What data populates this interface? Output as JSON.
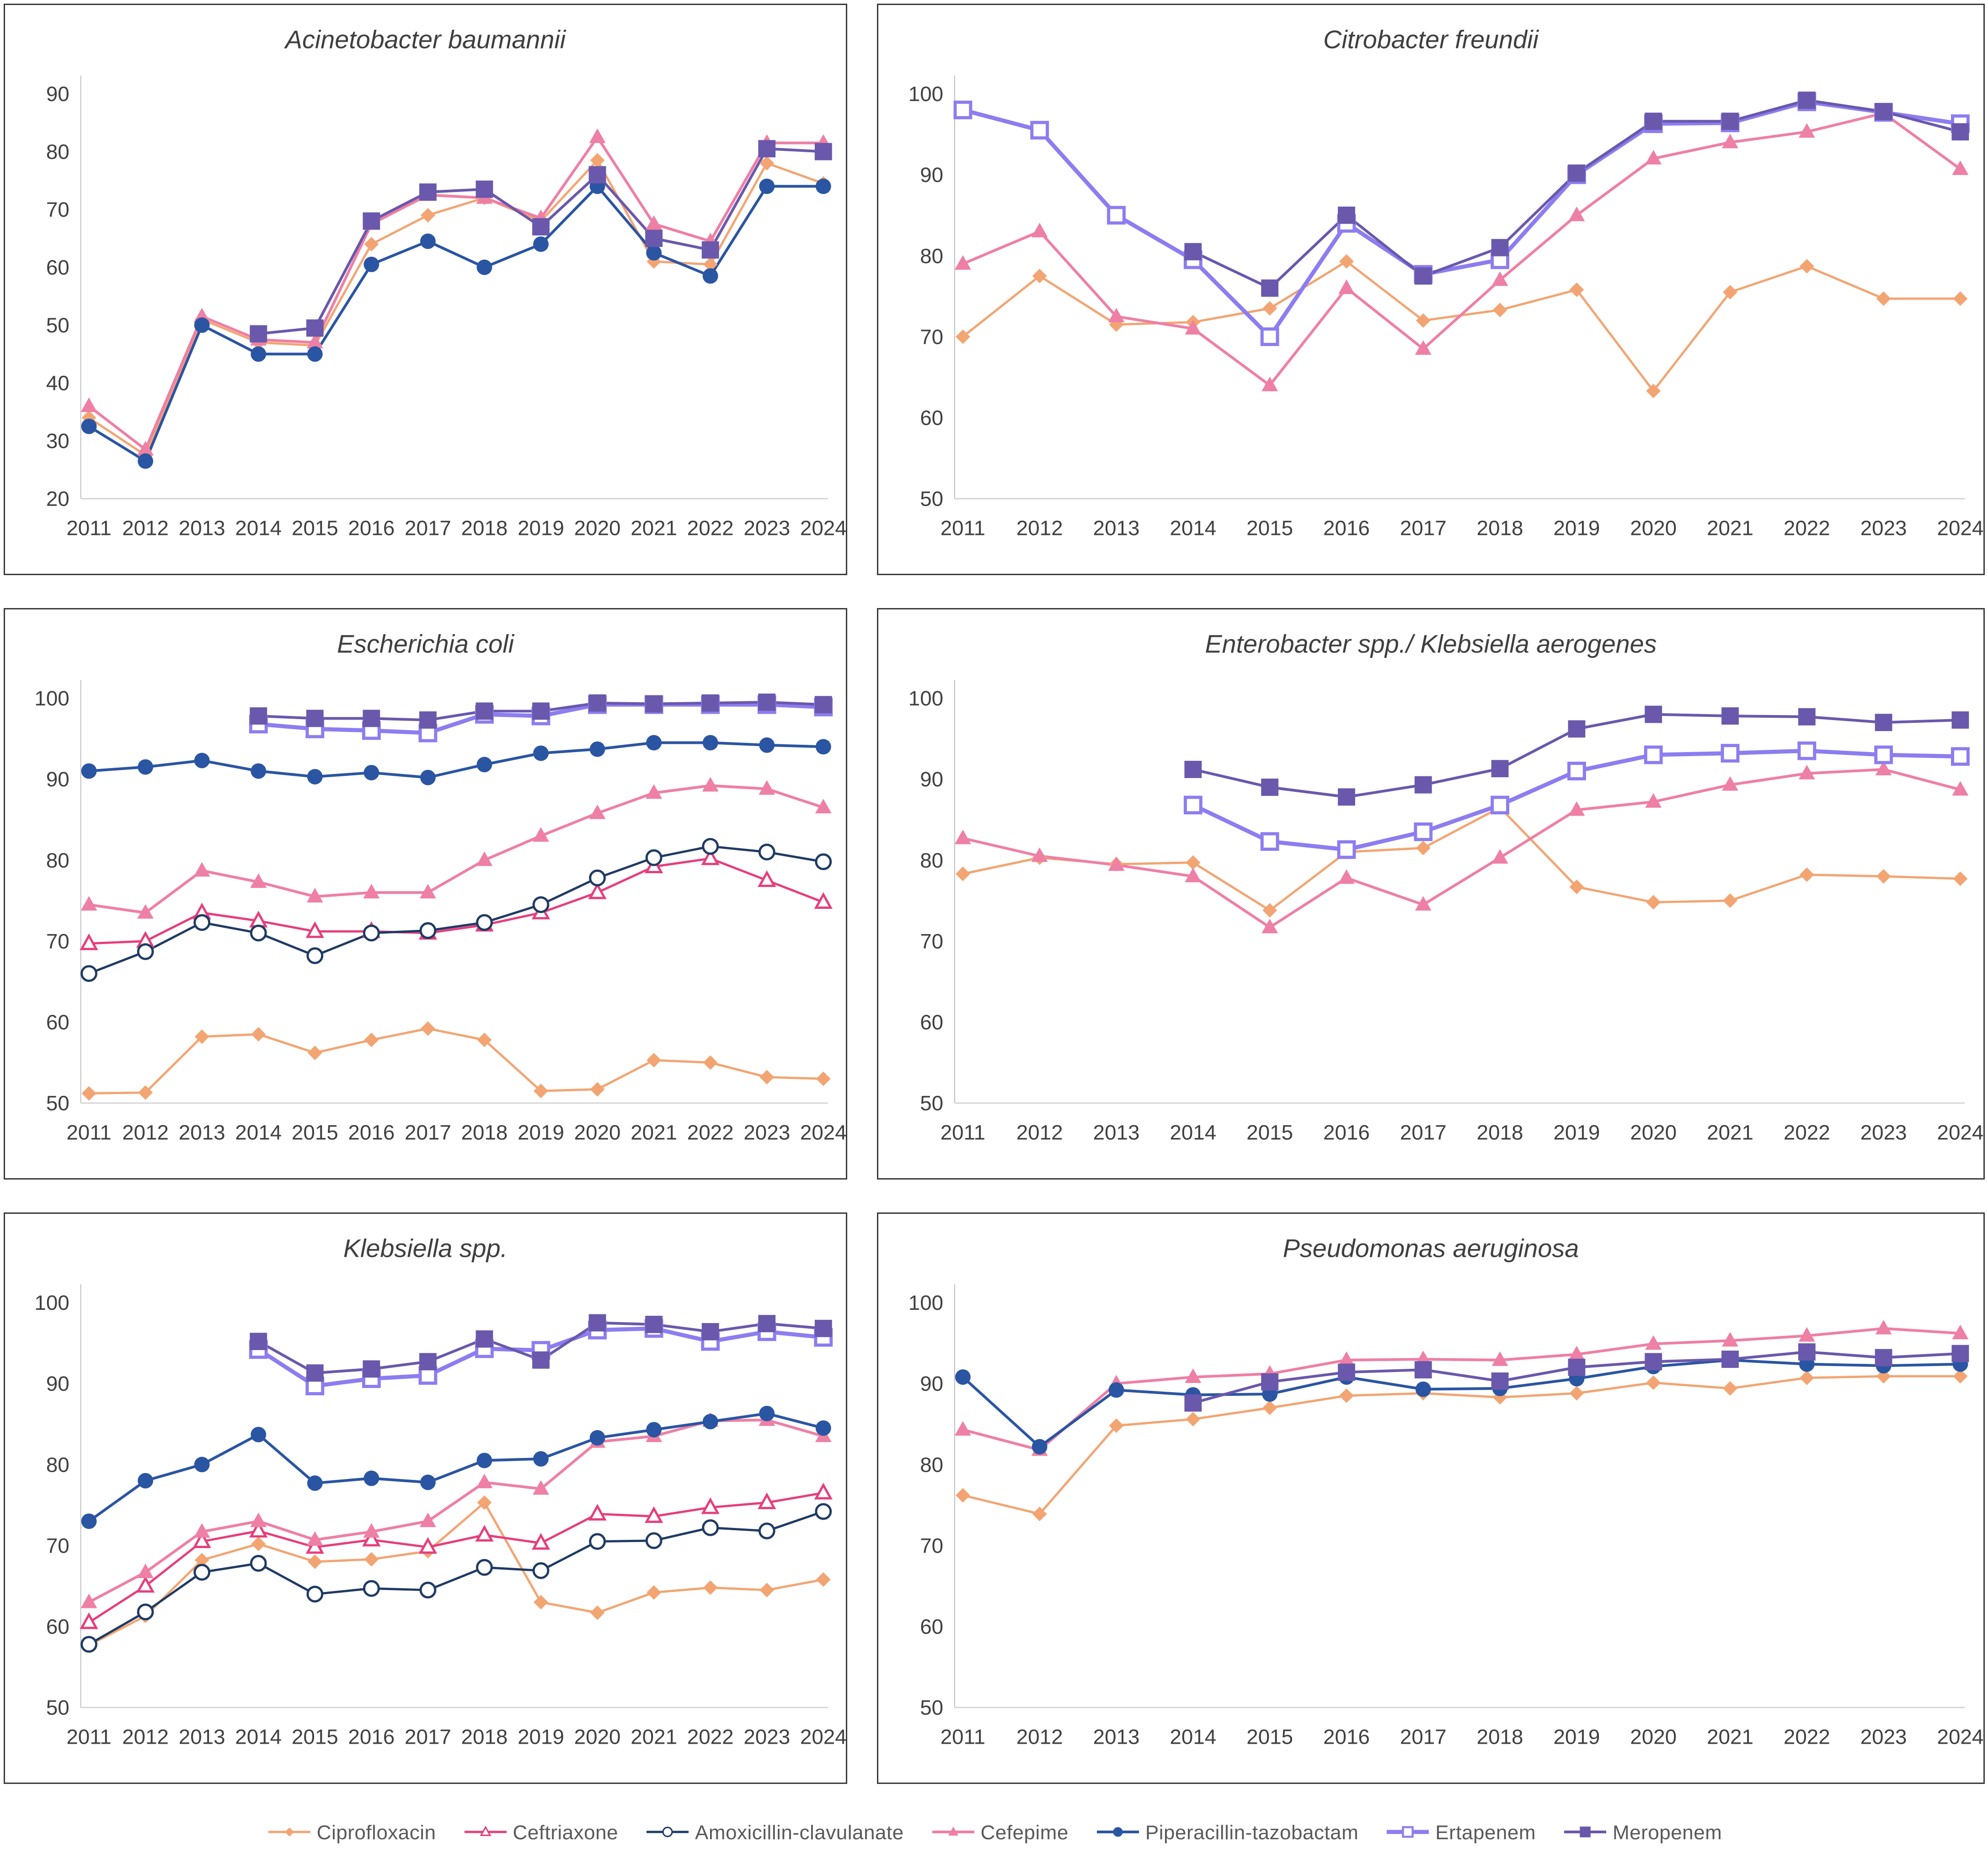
{
  "page": {
    "background": "#ffffff",
    "text_color": "#404040"
  },
  "series_styles": {
    "ciprofloxacin": {
      "label": "Ciprofloxacin",
      "color": "#F2A572",
      "marker": "diamond",
      "lw": 5
    },
    "ceftriaxone": {
      "label": "Ceftriaxone",
      "color": "#E63E7C",
      "marker": "triangle-open",
      "lw": 5
    },
    "amoxicillin_clavulanate": {
      "label": "Amoxicillin-clavulanate",
      "color": "#1F3B63",
      "marker": "circle-open",
      "lw": 5
    },
    "cefepime": {
      "label": "Cefepime",
      "color": "#EE7FA5",
      "marker": "triangle",
      "lw": 6
    },
    "piperacillin_tazobactam": {
      "label": "Piperacillin-tazobactam",
      "color": "#2A55A2",
      "marker": "circle",
      "lw": 6
    },
    "ertapenem": {
      "label": "Ertapenem",
      "color": "#8C7DF0",
      "marker": "square-open",
      "lw": 9
    },
    "meropenem": {
      "label": "Meropenem",
      "color": "#6A58AC",
      "marker": "square",
      "lw": 6
    }
  },
  "legend": {
    "order": [
      "ciprofloxacin",
      "ceftriaxone",
      "amoxicillin_clavulanate",
      "cefepime",
      "piperacillin_tazobactam",
      "ertapenem",
      "meropenem"
    ]
  },
  "chart_data": [
    {
      "type": "line",
      "title": "Acinetobacter baumannii",
      "xlabel": "",
      "ylabel": "",
      "grid": false,
      "ylim": [
        20,
        90
      ],
      "yticks": [
        20,
        30,
        40,
        50,
        60,
        70,
        80,
        90
      ],
      "x": [
        "2011",
        "2012",
        "2013",
        "2014",
        "2015",
        "2016",
        "2017",
        "2018",
        "2019",
        "2020",
        "2021",
        "2022",
        "2023",
        "2024"
      ],
      "series": [
        {
          "key": "ciprofloxacin",
          "values": [
            34,
            27.5,
            51,
            47,
            46.5,
            64,
            69,
            72,
            68,
            78.5,
            61,
            60.5,
            78,
            74.5
          ]
        },
        {
          "key": "cefepime",
          "values": [
            36,
            28.5,
            51.5,
            47.5,
            47,
            67.5,
            72.5,
            72,
            68.5,
            82.5,
            67.5,
            64.5,
            81.5,
            81.5
          ]
        },
        {
          "key": "piperacillin_tazobactam",
          "values": [
            32.5,
            26.5,
            50,
            45,
            45,
            60.5,
            64.5,
            60,
            64,
            74,
            62.5,
            58.5,
            74,
            74
          ]
        },
        {
          "key": "meropenem",
          "values": [
            null,
            null,
            null,
            48.5,
            49.5,
            68,
            73,
            73.5,
            67,
            76,
            65,
            63,
            80.5,
            80
          ]
        }
      ]
    },
    {
      "type": "line",
      "title": "Citrobacter freundii",
      "xlabel": "",
      "ylabel": "",
      "grid": false,
      "ylim": [
        50,
        100
      ],
      "yticks": [
        50,
        60,
        70,
        80,
        90,
        100
      ],
      "x": [
        "2011",
        "2012",
        "2013",
        "2014",
        "2015",
        "2016",
        "2017",
        "2018",
        "2019",
        "2020",
        "2021",
        "2022",
        "2023",
        "2024"
      ],
      "series": [
        {
          "key": "ciprofloxacin",
          "values": [
            70,
            77.5,
            71.5,
            71.8,
            73.5,
            79.3,
            72,
            73.3,
            75.8,
            63.3,
            75.5,
            78.7,
            74.7,
            74.7
          ]
        },
        {
          "key": "cefepime",
          "values": [
            79,
            83,
            72.5,
            71,
            64,
            76,
            68.5,
            77,
            85,
            92,
            94,
            95.3,
            97.6,
            90.7
          ]
        },
        {
          "key": "ertapenem",
          "values": [
            98,
            95.5,
            85,
            79.5,
            70,
            84,
            77.7,
            79.5,
            90,
            96.3,
            96.4,
            99,
            97.7,
            96.3
          ]
        },
        {
          "key": "meropenem",
          "values": [
            null,
            null,
            null,
            80.5,
            76,
            85,
            77.5,
            81,
            90.2,
            96.6,
            96.6,
            99.2,
            97.8,
            95.3
          ]
        }
      ]
    },
    {
      "type": "line",
      "title": "Escherichia coli",
      "xlabel": "",
      "ylabel": "",
      "grid": false,
      "ylim": [
        50,
        100
      ],
      "yticks": [
        50,
        60,
        70,
        80,
        90,
        100
      ],
      "x": [
        "2011",
        "2012",
        "2013",
        "2014",
        "2015",
        "2016",
        "2017",
        "2018",
        "2019",
        "2020",
        "2021",
        "2022",
        "2023",
        "2024"
      ],
      "series": [
        {
          "key": "ciprofloxacin",
          "values": [
            51.2,
            51.3,
            58.2,
            58.5,
            56.2,
            57.8,
            59.2,
            57.8,
            51.5,
            51.7,
            55.3,
            55,
            53.2,
            53
          ]
        },
        {
          "key": "ceftriaxone",
          "values": [
            69.7,
            70,
            73.5,
            72.5,
            71.2,
            71.2,
            71,
            72,
            73.5,
            76,
            79.2,
            80.2,
            77.5,
            74.8
          ]
        },
        {
          "key": "amoxicillin_clavulanate",
          "values": [
            66,
            68.7,
            72.3,
            71,
            68.2,
            71,
            71.3,
            72.3,
            74.5,
            77.8,
            80.3,
            81.7,
            81,
            79.8
          ]
        },
        {
          "key": "cefepime",
          "values": [
            74.5,
            73.5,
            78.7,
            77.3,
            75.5,
            76,
            76,
            80,
            83,
            85.8,
            88.3,
            89.2,
            88.8,
            86.5
          ]
        },
        {
          "key": "piperacillin_tazobactam",
          "values": [
            91,
            91.5,
            92.3,
            91,
            90.3,
            90.8,
            90.2,
            91.8,
            93.2,
            93.7,
            94.5,
            94.5,
            94.2,
            94
          ]
        },
        {
          "key": "ertapenem",
          "values": [
            null,
            null,
            null,
            96.8,
            96.2,
            96,
            95.7,
            98,
            97.8,
            99.2,
            99.2,
            99.2,
            99.2,
            98.9
          ]
        },
        {
          "key": "meropenem",
          "values": [
            null,
            null,
            null,
            97.8,
            97.5,
            97.5,
            97.3,
            98.4,
            98.4,
            99.4,
            99.3,
            99.4,
            99.5,
            99.2
          ]
        }
      ]
    },
    {
      "type": "line",
      "title": "Enterobacter spp./ Klebsiella aerogenes",
      "xlabel": "",
      "ylabel": "",
      "grid": false,
      "ylim": [
        50,
        100
      ],
      "yticks": [
        50,
        60,
        70,
        80,
        90,
        100
      ],
      "x": [
        "2011",
        "2012",
        "2013",
        "2014",
        "2015",
        "2016",
        "2017",
        "2018",
        "2019",
        "2020",
        "2021",
        "2022",
        "2023",
        "2024"
      ],
      "series": [
        {
          "key": "ciprofloxacin",
          "values": [
            78.3,
            80.3,
            79.5,
            79.7,
            73.8,
            81,
            81.5,
            86.5,
            76.7,
            74.8,
            75,
            78.2,
            78,
            77.7
          ]
        },
        {
          "key": "cefepime",
          "values": [
            82.7,
            80.5,
            79.4,
            78,
            71.7,
            77.8,
            74.5,
            80.3,
            86.2,
            87.2,
            89.3,
            90.7,
            91.2,
            88.7
          ]
        },
        {
          "key": "ertapenem",
          "values": [
            null,
            null,
            null,
            86.8,
            82.3,
            81.3,
            83.5,
            86.8,
            91,
            93,
            93.2,
            93.5,
            93,
            92.8
          ]
        },
        {
          "key": "meropenem",
          "values": [
            null,
            null,
            null,
            91.2,
            89,
            87.8,
            89.3,
            91.3,
            96.2,
            98,
            97.8,
            97.7,
            97,
            97.3
          ]
        }
      ]
    },
    {
      "type": "line",
      "title": "Klebsiella spp.",
      "xlabel": "",
      "ylabel": "",
      "grid": false,
      "ylim": [
        50,
        100
      ],
      "yticks": [
        50,
        60,
        70,
        80,
        90,
        100
      ],
      "x": [
        "2011",
        "2012",
        "2013",
        "2014",
        "2015",
        "2016",
        "2017",
        "2018",
        "2019",
        "2020",
        "2021",
        "2022",
        "2023",
        "2024"
      ],
      "series": [
        {
          "key": "ciprofloxacin",
          "values": [
            57.7,
            61.3,
            68.2,
            70.2,
            68,
            68.3,
            69.3,
            75.3,
            63,
            61.7,
            64.2,
            64.8,
            64.5,
            65.8
          ]
        },
        {
          "key": "ceftriaxone",
          "values": [
            60.5,
            65,
            70.5,
            71.8,
            69.8,
            70.7,
            69.8,
            71.3,
            70.3,
            73.9,
            73.6,
            74.7,
            75.3,
            76.5
          ]
        },
        {
          "key": "amoxicillin_clavulanate",
          "values": [
            57.8,
            61.8,
            66.7,
            67.8,
            64,
            64.7,
            64.5,
            67.3,
            66.9,
            70.5,
            70.6,
            72.2,
            71.8,
            74.2
          ]
        },
        {
          "key": "cefepime",
          "values": [
            63,
            66.7,
            71.7,
            73,
            70.7,
            71.7,
            73,
            77.8,
            77,
            82.8,
            83.5,
            85.4,
            85.5,
            83.5
          ]
        },
        {
          "key": "piperacillin_tazobactam",
          "values": [
            73,
            78,
            80,
            83.7,
            77.7,
            78.3,
            77.8,
            80.5,
            80.7,
            83.3,
            84.3,
            85.3,
            86.3,
            84.5
          ]
        },
        {
          "key": "ertapenem",
          "values": [
            null,
            null,
            null,
            94.2,
            89.7,
            90.6,
            91,
            94.3,
            94.1,
            96.6,
            96.8,
            95.2,
            96.4,
            95.7
          ]
        },
        {
          "key": "meropenem",
          "values": [
            null,
            null,
            null,
            95.2,
            91.3,
            91.8,
            92.7,
            95.5,
            92.9,
            97.5,
            97.3,
            96.4,
            97.4,
            96.8
          ]
        }
      ]
    },
    {
      "type": "line",
      "title": "Pseudomonas aeruginosa",
      "xlabel": "",
      "ylabel": "",
      "grid": false,
      "ylim": [
        50,
        100
      ],
      "yticks": [
        50,
        60,
        70,
        80,
        90,
        100
      ],
      "x": [
        "2011",
        "2012",
        "2013",
        "2014",
        "2015",
        "2016",
        "2017",
        "2018",
        "2019",
        "2020",
        "2021",
        "2022",
        "2023",
        "2024"
      ],
      "series": [
        {
          "key": "ciprofloxacin",
          "values": [
            76.2,
            73.9,
            84.8,
            85.6,
            87,
            88.5,
            88.8,
            88.3,
            88.8,
            90.1,
            89.4,
            90.7,
            90.9,
            90.9
          ]
        },
        {
          "key": "cefepime",
          "values": [
            84.3,
            81.8,
            90,
            90.8,
            91.2,
            92.9,
            93,
            92.9,
            93.6,
            94.9,
            95.3,
            95.9,
            96.8,
            96.2
          ]
        },
        {
          "key": "piperacillin_tazobactam",
          "values": [
            90.8,
            82.2,
            89.2,
            88.6,
            88.7,
            90.8,
            89.3,
            89.4,
            90.6,
            92.1,
            92.9,
            92.4,
            92.2,
            92.4
          ]
        },
        {
          "key": "meropenem",
          "values": [
            null,
            null,
            null,
            87.6,
            90.2,
            91.4,
            91.7,
            90.3,
            92,
            92.7,
            93,
            93.9,
            93.2,
            93.7
          ]
        }
      ]
    }
  ]
}
